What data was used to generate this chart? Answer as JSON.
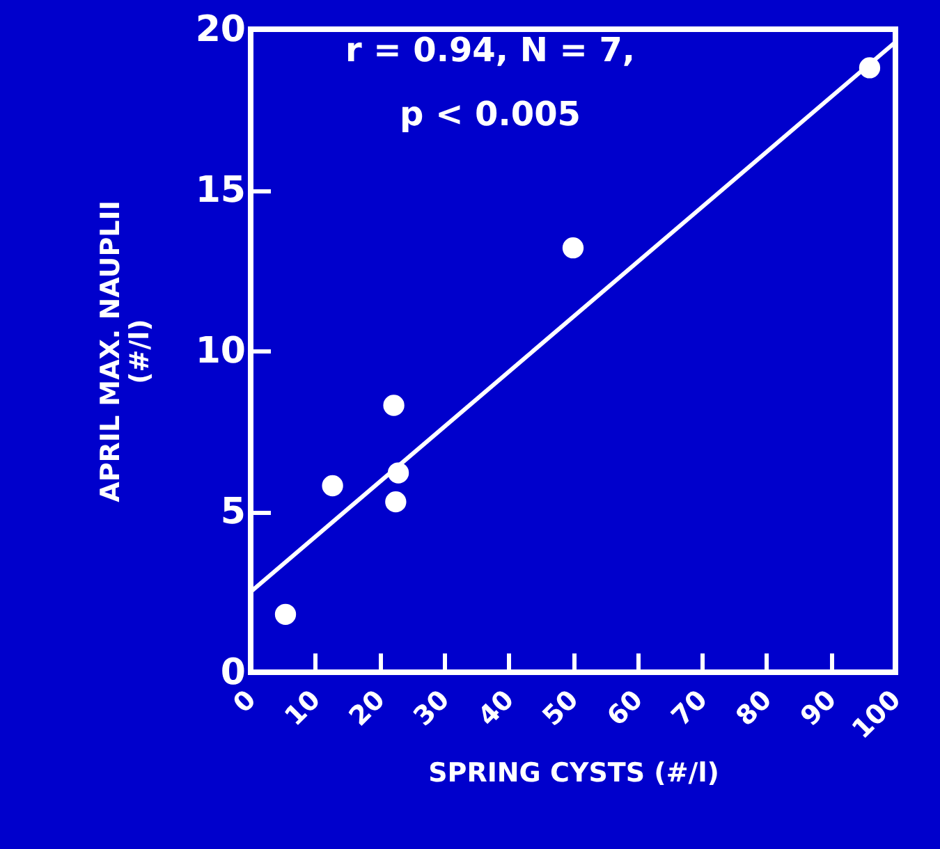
{
  "chart_data": {
    "type": "scatter",
    "xlabel": "SPRING CYSTS (#/l)",
    "ylabel": "APRIL MAX. NAUPLII\n(#/l)",
    "annotations": [
      "r = 0.94, N = 7,",
      "p < 0.005"
    ],
    "series": [
      {
        "color": "#ffffff",
        "x": [
          5.4,
          12.7,
          22.2,
          22.9,
          22.5,
          50.0,
          96.0
        ],
        "values": [
          1.8,
          5.8,
          8.3,
          6.2,
          5.3,
          13.2,
          18.8
        ]
      },
      {
        "type": "line",
        "color": "#ffffff",
        "marker": "none",
        "x": [
          0,
          100
        ],
        "values": [
          2.5,
          19.6
        ]
      }
    ],
    "marker": "circle",
    "line_style": "solid",
    "xlim": [
      0,
      100
    ],
    "xticks": [
      0,
      10,
      20,
      30,
      40,
      50,
      60,
      70,
      80,
      90,
      100
    ],
    "ylim": [
      0,
      20
    ],
    "yticks": [
      0,
      5,
      10,
      15,
      20
    ],
    "grid": false
  }
}
